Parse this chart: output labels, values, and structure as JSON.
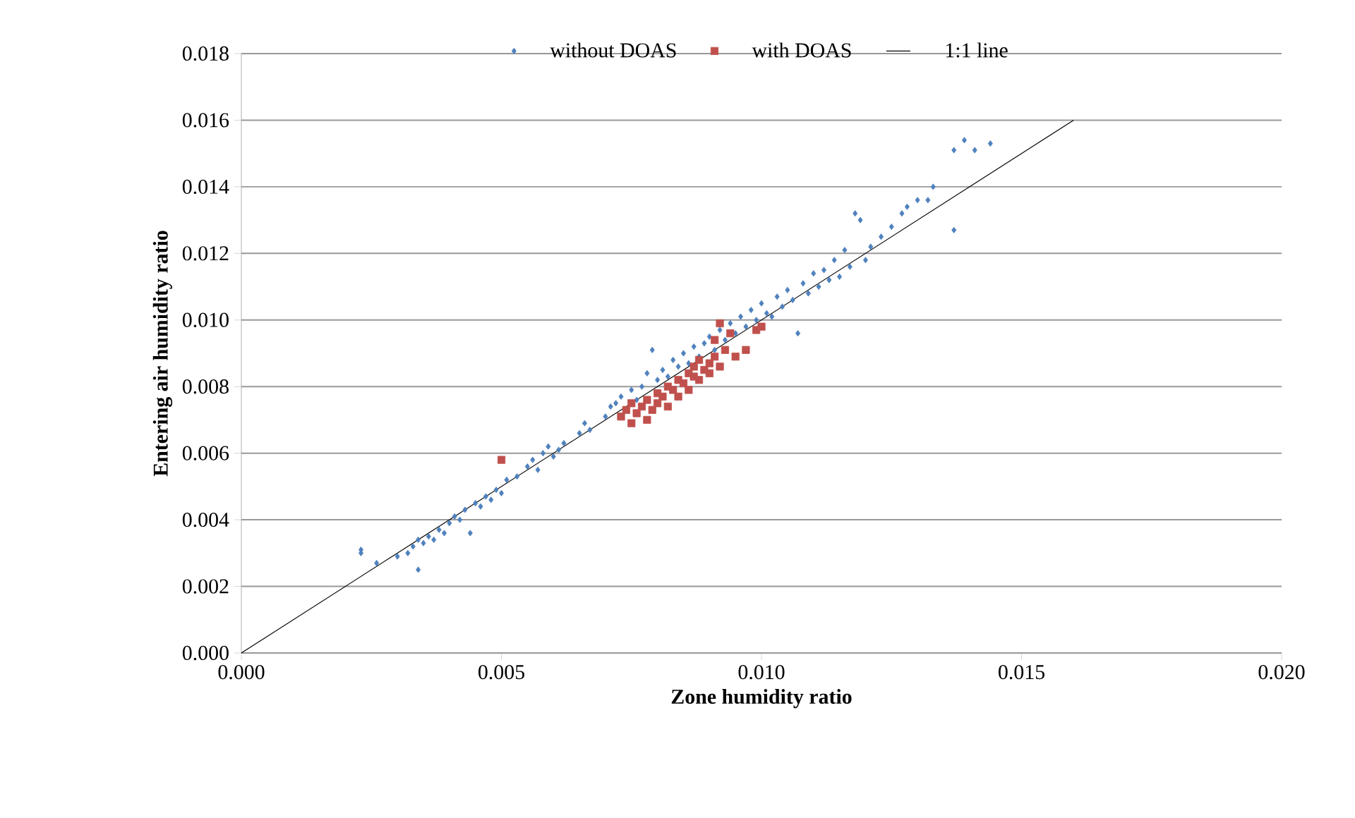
{
  "chart_data": {
    "type": "scatter",
    "xlabel": "Zone humidity ratio",
    "ylabel": "Entering air humidity ratio",
    "xlim": [
      0,
      0.02
    ],
    "ylim": [
      0,
      0.018
    ],
    "xticks": [
      {
        "value": 0,
        "label": "0.000"
      },
      {
        "value": 0.005,
        "label": "0.005"
      },
      {
        "value": 0.01,
        "label": "0.010"
      },
      {
        "value": 0.015,
        "label": "0.015"
      },
      {
        "value": 0.02,
        "label": "0.020"
      }
    ],
    "yticks": [
      {
        "value": 0,
        "label": "0.000"
      },
      {
        "value": 0.002,
        "label": "0.002"
      },
      {
        "value": 0.004,
        "label": "0.004"
      },
      {
        "value": 0.006,
        "label": "0.006"
      },
      {
        "value": 0.008,
        "label": "0.008"
      },
      {
        "value": 0.01,
        "label": "0.010"
      },
      {
        "value": 0.012,
        "label": "0.012"
      },
      {
        "value": 0.014,
        "label": "0.014"
      },
      {
        "value": 0.016,
        "label": "0.016"
      },
      {
        "value": 0.018,
        "label": "0.018"
      }
    ],
    "grid": "y",
    "legend": "top",
    "series": [
      {
        "name": "without DOAS",
        "color": "#4f81bd",
        "marker": "diamond",
        "x": [
          0.0023,
          0.0023,
          0.0026,
          0.003,
          0.0032,
          0.0033,
          0.0034,
          0.0034,
          0.0035,
          0.0036,
          0.0037,
          0.0038,
          0.0039,
          0.004,
          0.0041,
          0.0042,
          0.0043,
          0.0044,
          0.0045,
          0.0046,
          0.0047,
          0.0048,
          0.0049,
          0.005,
          0.0051,
          0.0053,
          0.0055,
          0.0056,
          0.0057,
          0.0058,
          0.0059,
          0.006,
          0.0061,
          0.0062,
          0.0065,
          0.0066,
          0.0067,
          0.007,
          0.0071,
          0.0072,
          0.0073,
          0.0075,
          0.0076,
          0.0077,
          0.0078,
          0.0079,
          0.008,
          0.0081,
          0.0082,
          0.0083,
          0.0084,
          0.0085,
          0.0086,
          0.0087,
          0.0088,
          0.0089,
          0.009,
          0.0091,
          0.0092,
          0.0093,
          0.0094,
          0.0095,
          0.0096,
          0.0097,
          0.0098,
          0.0099,
          0.01,
          0.0101,
          0.0102,
          0.0103,
          0.0104,
          0.0105,
          0.0106,
          0.0107,
          0.0108,
          0.0109,
          0.011,
          0.0111,
          0.0112,
          0.0113,
          0.0114,
          0.0115,
          0.0116,
          0.0117,
          0.0118,
          0.0119,
          0.012,
          0.0121,
          0.0123,
          0.0125,
          0.0127,
          0.0128,
          0.013,
          0.0132,
          0.0133,
          0.0137,
          0.0137,
          0.0139,
          0.0141,
          0.0144
        ],
        "values": [
          0.003,
          0.0031,
          0.0027,
          0.0029,
          0.003,
          0.0032,
          0.0025,
          0.0034,
          0.0033,
          0.0035,
          0.0034,
          0.0037,
          0.0036,
          0.0039,
          0.0041,
          0.004,
          0.0043,
          0.0036,
          0.0045,
          0.0044,
          0.0047,
          0.0046,
          0.0049,
          0.0048,
          0.0052,
          0.0053,
          0.0056,
          0.0058,
          0.0055,
          0.006,
          0.0062,
          0.0059,
          0.0061,
          0.0063,
          0.0066,
          0.0069,
          0.0067,
          0.0071,
          0.0074,
          0.0075,
          0.0077,
          0.0079,
          0.0076,
          0.008,
          0.0084,
          0.0091,
          0.0082,
          0.0085,
          0.0083,
          0.0088,
          0.0086,
          0.009,
          0.0087,
          0.0092,
          0.0089,
          0.0093,
          0.0095,
          0.0091,
          0.0097,
          0.0094,
          0.0099,
          0.0096,
          0.0101,
          0.0098,
          0.0103,
          0.01,
          0.0105,
          0.0102,
          0.0101,
          0.0107,
          0.0104,
          0.0109,
          0.0106,
          0.0096,
          0.0111,
          0.0108,
          0.0114,
          0.011,
          0.0115,
          0.0112,
          0.0118,
          0.0113,
          0.0121,
          0.0116,
          0.0132,
          0.013,
          0.0118,
          0.0122,
          0.0125,
          0.0128,
          0.0132,
          0.0134,
          0.0136,
          0.0136,
          0.014,
          0.0127,
          0.0151,
          0.0154,
          0.0151,
          0.0153
        ]
      },
      {
        "name": "with DOAS",
        "color": "#c0504d",
        "marker": "square",
        "x": [
          0.005,
          0.0073,
          0.0074,
          0.0075,
          0.0075,
          0.0076,
          0.0077,
          0.0078,
          0.0078,
          0.0079,
          0.008,
          0.008,
          0.0081,
          0.0082,
          0.0082,
          0.0083,
          0.0084,
          0.0084,
          0.0085,
          0.0086,
          0.0086,
          0.0087,
          0.0087,
          0.0088,
          0.0088,
          0.0089,
          0.009,
          0.009,
          0.0091,
          0.0091,
          0.0092,
          0.0092,
          0.0093,
          0.0094,
          0.0095,
          0.0097,
          0.0099,
          0.01
        ],
        "values": [
          0.0058,
          0.0071,
          0.0073,
          0.0069,
          0.0075,
          0.0072,
          0.0074,
          0.007,
          0.0076,
          0.0073,
          0.0078,
          0.0075,
          0.0077,
          0.008,
          0.0074,
          0.0079,
          0.0082,
          0.0077,
          0.0081,
          0.0084,
          0.0079,
          0.0086,
          0.0083,
          0.0088,
          0.0082,
          0.0085,
          0.0087,
          0.0084,
          0.0094,
          0.0089,
          0.0099,
          0.0086,
          0.0091,
          0.0096,
          0.0089,
          0.0091,
          0.0097,
          0.0098
        ]
      },
      {
        "name": "1:1 line",
        "type": "line",
        "color": "#000000",
        "marker": "none",
        "line_style": "solid",
        "x": [
          0,
          0.016
        ],
        "values": [
          0,
          0.016
        ]
      }
    ]
  }
}
